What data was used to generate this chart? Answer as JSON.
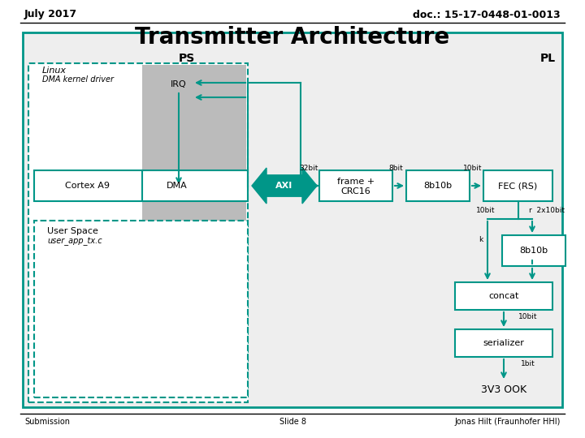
{
  "title": "Transmitter Architecture",
  "doc_ref": "doc.: 15-17-0448-01-0013",
  "date": "July 2017",
  "footer_left": "Submission",
  "footer_center": "Slide 8",
  "footer_right": "Jonas Hilt (Fraunhofer HHI)",
  "teal": "#009688",
  "bg_color": "#FFFFFF",
  "gray_fill": "#BBBBBB",
  "outer_fill": "#EEEEEE"
}
